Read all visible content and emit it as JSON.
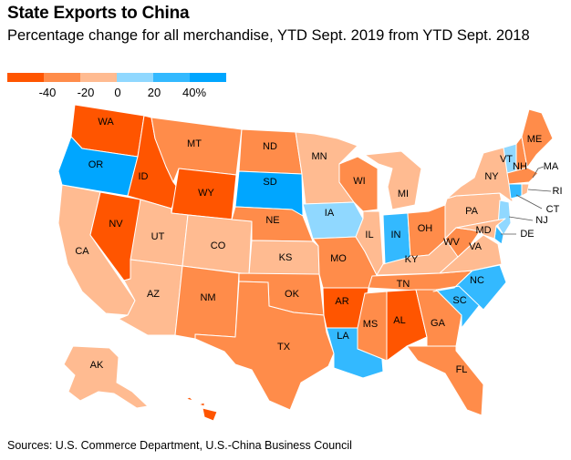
{
  "title": "State Exports to China",
  "subtitle": "Percentage change for all merchandise, YTD Sept. 2019 from YTD Sept. 2018",
  "legend": {
    "bins": [
      {
        "color": "#FF5500"
      },
      {
        "color": "#FF8C4A"
      },
      {
        "color": "#FFBB91"
      },
      {
        "color": "#90D8FF"
      },
      {
        "color": "#33B9FF"
      },
      {
        "color": "#00A6FF"
      }
    ],
    "tick_labels": [
      "-40",
      "-20",
      "0",
      "20",
      "40%"
    ]
  },
  "colors": {
    "strong_decline": "#FF5500",
    "decline": "#FF8C4A",
    "slight_decline": "#FFBB91",
    "slight_increase": "#90D8FF",
    "increase": "#33B9FF",
    "strong_increase": "#00A6FF"
  },
  "states": [
    {
      "abbr": "WA",
      "category": "strong_decline"
    },
    {
      "abbr": "OR",
      "category": "strong_increase"
    },
    {
      "abbr": "CA",
      "category": "slight_decline"
    },
    {
      "abbr": "NV",
      "category": "strong_decline"
    },
    {
      "abbr": "ID",
      "category": "strong_decline"
    },
    {
      "abbr": "MT",
      "category": "decline"
    },
    {
      "abbr": "WY",
      "category": "strong_decline"
    },
    {
      "abbr": "UT",
      "category": "slight_decline"
    },
    {
      "abbr": "AZ",
      "category": "slight_decline"
    },
    {
      "abbr": "CO",
      "category": "slight_decline"
    },
    {
      "abbr": "NM",
      "category": "decline"
    },
    {
      "abbr": "ND",
      "category": "decline"
    },
    {
      "abbr": "SD",
      "category": "strong_increase"
    },
    {
      "abbr": "NE",
      "category": "decline"
    },
    {
      "abbr": "KS",
      "category": "slight_decline"
    },
    {
      "abbr": "OK",
      "category": "decline"
    },
    {
      "abbr": "TX",
      "category": "decline"
    },
    {
      "abbr": "MN",
      "category": "slight_decline"
    },
    {
      "abbr": "IA",
      "category": "slight_increase"
    },
    {
      "abbr": "MO",
      "category": "decline"
    },
    {
      "abbr": "AR",
      "category": "strong_decline"
    },
    {
      "abbr": "LA",
      "category": "increase"
    },
    {
      "abbr": "WI",
      "category": "decline"
    },
    {
      "abbr": "IL",
      "category": "slight_decline"
    },
    {
      "abbr": "MI",
      "category": "slight_decline"
    },
    {
      "abbr": "IN",
      "category": "increase"
    },
    {
      "abbr": "OH",
      "category": "decline"
    },
    {
      "abbr": "KY",
      "category": "slight_decline"
    },
    {
      "abbr": "TN",
      "category": "decline"
    },
    {
      "abbr": "MS",
      "category": "decline"
    },
    {
      "abbr": "AL",
      "category": "strong_decline"
    },
    {
      "abbr": "GA",
      "category": "decline"
    },
    {
      "abbr": "FL",
      "category": "decline"
    },
    {
      "abbr": "SC",
      "category": "increase"
    },
    {
      "abbr": "NC",
      "category": "increase"
    },
    {
      "abbr": "VA",
      "category": "slight_decline"
    },
    {
      "abbr": "WV",
      "category": "decline"
    },
    {
      "abbr": "PA",
      "category": "slight_decline"
    },
    {
      "abbr": "NY",
      "category": "slight_decline"
    },
    {
      "abbr": "VT",
      "category": "slight_increase"
    },
    {
      "abbr": "NH",
      "category": "decline"
    },
    {
      "abbr": "ME",
      "category": "decline"
    },
    {
      "abbr": "MA",
      "category": "decline"
    },
    {
      "abbr": "RI",
      "category": "slight_decline"
    },
    {
      "abbr": "CT",
      "category": "increase"
    },
    {
      "abbr": "NJ",
      "category": "slight_increase"
    },
    {
      "abbr": "DE",
      "category": "increase"
    },
    {
      "abbr": "MD",
      "category": "slight_decline"
    },
    {
      "abbr": "AK",
      "category": "slight_decline"
    },
    {
      "abbr": "HI",
      "category": "strong_decline"
    }
  ],
  "source": "Sources: U.S. Commerce Department, U.S.-China Business Council"
}
